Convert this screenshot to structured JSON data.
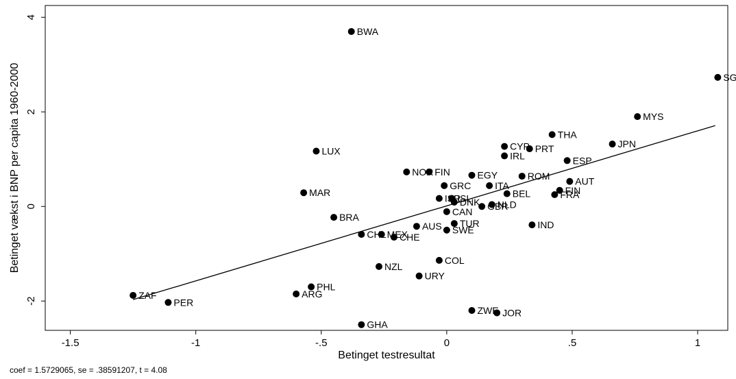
{
  "chart_data": {
    "type": "scatter",
    "xlabel": "Betinget testresultat",
    "ylabel": "Betinget vækst i BNP per capita 1960-2000",
    "xlim": [
      -1.6,
      1.12
    ],
    "ylim": [
      -2.62,
      4.25
    ],
    "x_ticks": [
      -1.5,
      -1,
      -0.5,
      0,
      0.5,
      1
    ],
    "x_tick_labels": [
      "-1.5",
      "-1",
      "-.5",
      "0",
      ".5",
      "1"
    ],
    "y_ticks": [
      -2,
      0,
      2,
      4
    ],
    "y_tick_labels": [
      "-2",
      "0",
      "2",
      "4"
    ],
    "grid": false,
    "legend": "none",
    "fit_line": {
      "x": [
        -1.25,
        1.07
      ],
      "y": [
        -1.97,
        1.71
      ]
    },
    "points": [
      {
        "label": "BWA",
        "x": -0.38,
        "y": 3.7
      },
      {
        "label": "SGP",
        "x": 1.08,
        "y": 2.73
      },
      {
        "label": "MYS",
        "x": 0.76,
        "y": 1.9
      },
      {
        "label": "THA",
        "x": 0.42,
        "y": 1.52
      },
      {
        "label": "JPN",
        "x": 0.66,
        "y": 1.32
      },
      {
        "label": "CYP",
        "x": 0.23,
        "y": 1.27
      },
      {
        "label": "PRT",
        "x": 0.33,
        "y": 1.22
      },
      {
        "label": "LUX",
        "x": -0.52,
        "y": 1.17
      },
      {
        "label": "IRL",
        "x": 0.23,
        "y": 1.07
      },
      {
        "label": "ESP",
        "x": 0.48,
        "y": 0.97
      },
      {
        "label": "NOR",
        "x": -0.16,
        "y": 0.73
      },
      {
        "label": "FIN",
        "x": -0.07,
        "y": 0.73
      },
      {
        "label": "EGY",
        "x": 0.1,
        "y": 0.66
      },
      {
        "label": "ROM",
        "x": 0.3,
        "y": 0.64
      },
      {
        "label": "AUT",
        "x": 0.49,
        "y": 0.53
      },
      {
        "label": "GRC",
        "x": -0.01,
        "y": 0.44
      },
      {
        "label": "ITA",
        "x": 0.17,
        "y": 0.44
      },
      {
        "label": "FIN",
        "x": 0.45,
        "y": 0.34
      },
      {
        "label": "MAR",
        "x": -0.57,
        "y": 0.29
      },
      {
        "label": "BEL",
        "x": 0.24,
        "y": 0.27
      },
      {
        "label": "FRA",
        "x": 0.43,
        "y": 0.25
      },
      {
        "label": "ISR",
        "x": -0.03,
        "y": 0.17
      },
      {
        "label": "ISL",
        "x": 0.02,
        "y": 0.17
      },
      {
        "label": "DNK",
        "x": 0.03,
        "y": 0.09
      },
      {
        "label": "NLD",
        "x": 0.18,
        "y": 0.04
      },
      {
        "label": "GBR",
        "x": 0.14,
        "y": 0.0
      },
      {
        "label": "CAN",
        "x": 0.0,
        "y": -0.11
      },
      {
        "label": "BRA",
        "x": -0.45,
        "y": -0.23
      },
      {
        "label": "TUR",
        "x": 0.03,
        "y": -0.36
      },
      {
        "label": "IND",
        "x": 0.34,
        "y": -0.39
      },
      {
        "label": "AUS",
        "x": -0.12,
        "y": -0.42
      },
      {
        "label": "SWE",
        "x": 0.0,
        "y": -0.5
      },
      {
        "label": "CHL",
        "x": -0.34,
        "y": -0.59
      },
      {
        "label": "MEX",
        "x": -0.26,
        "y": -0.59
      },
      {
        "label": "CHE",
        "x": -0.21,
        "y": -0.65
      },
      {
        "label": "COL",
        "x": -0.03,
        "y": -1.14
      },
      {
        "label": "NZL",
        "x": -0.27,
        "y": -1.27
      },
      {
        "label": "URY",
        "x": -0.11,
        "y": -1.47
      },
      {
        "label": "PHL",
        "x": -0.54,
        "y": -1.7
      },
      {
        "label": "ARG",
        "x": -0.6,
        "y": -1.85
      },
      {
        "label": "ZAF",
        "x": -1.25,
        "y": -1.88
      },
      {
        "label": "PER",
        "x": -1.11,
        "y": -2.03
      },
      {
        "label": "ZWE",
        "x": 0.1,
        "y": -2.2
      },
      {
        "label": "JOR",
        "x": 0.2,
        "y": -2.25
      },
      {
        "label": "GHA",
        "x": -0.34,
        "y": -2.5
      }
    ],
    "annotation": "coef = 1.5729065, se = .38591207, t = 4.08"
  }
}
